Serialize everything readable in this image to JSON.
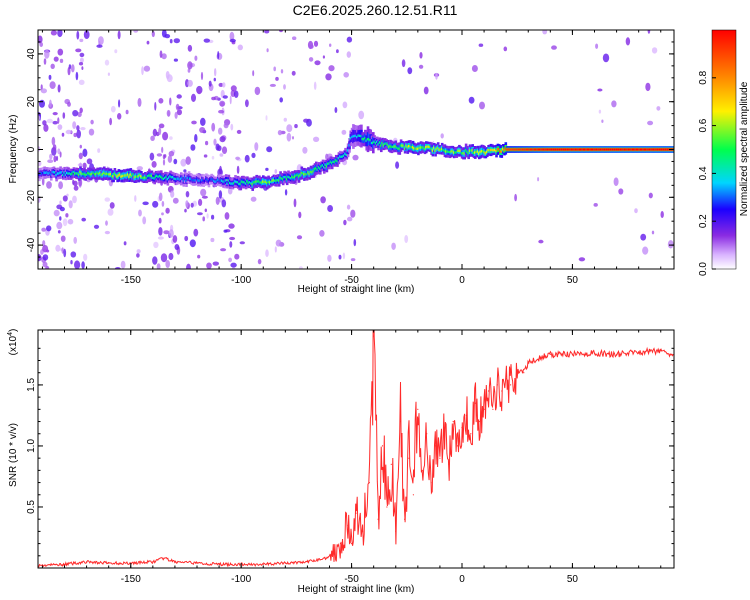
{
  "chart_data": [
    {
      "type": "heatmap",
      "title": "C2E6.2025.260.12.51.R11",
      "xlabel": "Height of straight line (km)",
      "ylabel": "Frequency (Hz)",
      "xlim": [
        -192,
        96
      ],
      "ylim": [
        -50,
        50
      ],
      "xticks": [
        -150,
        -100,
        -50,
        0,
        50
      ],
      "yticks": [
        -40,
        -20,
        0,
        20,
        40
      ],
      "colorbar": {
        "label": "Normalized spectral amplitude",
        "range": [
          0,
          1
        ],
        "ticks": [
          "0.0",
          "0.2",
          "0.4",
          "0.6",
          "0.8"
        ],
        "colors": [
          "#ffffff",
          "#d9b3ff",
          "#8a2be2",
          "#1b00ff",
          "#00d5ff",
          "#00ff4c",
          "#fff000",
          "#ff8a00",
          "#ff0000"
        ]
      },
      "ridge": {
        "x": [
          -192,
          -170,
          -150,
          -130,
          -115,
          -100,
          -90,
          -80,
          -70,
          -60,
          -52,
          -50,
          -45,
          -40,
          -30,
          -20,
          -10,
          0,
          10,
          20,
          40,
          60,
          80,
          96
        ],
        "freq_hz": [
          -10,
          -10,
          -11,
          -12,
          -13,
          -14,
          -14,
          -12,
          -10,
          -6,
          -2,
          6,
          5,
          3,
          1,
          1,
          0,
          -1,
          -1,
          0,
          0,
          0,
          0,
          0
        ],
        "peak_amplitude": [
          0.3,
          0.6,
          0.7,
          0.4,
          0.3,
          0.5,
          0.6,
          0.5,
          0.6,
          0.5,
          0.4,
          0.4,
          0.5,
          0.5,
          0.6,
          0.7,
          0.6,
          0.6,
          0.7,
          0.9,
          1.0,
          1.0,
          1.0,
          1.0
        ]
      },
      "noise_bands": [
        [
          -192,
          -170
        ],
        [
          -140,
          -100
        ]
      ]
    },
    {
      "type": "line",
      "xlabel": "Height of straight line (km)",
      "ylabel": "SNR (10 * v/v)",
      "y_scale_label": "(x10",
      "y_scale_exp": "4",
      "y_scale_close": ")",
      "xlim": [
        -192,
        96
      ],
      "ylim": [
        0,
        1.95
      ],
      "xticks": [
        -150,
        -100,
        -50,
        0,
        50
      ],
      "yticks": [
        0.5,
        1.0,
        1.5
      ],
      "yticklabels": [
        "0.5",
        "1.0",
        "1.5"
      ],
      "color": "#ff2a2a",
      "series": [
        {
          "x": [
            -192,
            -180,
            -170,
            -160,
            -150,
            -140,
            -135,
            -130,
            -120,
            -110,
            -100,
            -90,
            -80,
            -70,
            -62,
            -58,
            -55,
            -52,
            -50,
            -48,
            -45,
            -42,
            -40,
            -38,
            -36,
            -34,
            -32,
            -30,
            -28,
            -26,
            -24,
            -22,
            -20,
            -18,
            -16,
            -14,
            -12,
            -10,
            -8,
            -6,
            -4,
            -2,
            0,
            2,
            4,
            6,
            8,
            10,
            12,
            14,
            16,
            18,
            20,
            22,
            25,
            28,
            30,
            35,
            40,
            50,
            60,
            70,
            80,
            90,
            96
          ],
          "values": [
            0.02,
            0.03,
            0.05,
            0.04,
            0.04,
            0.05,
            0.08,
            0.05,
            0.04,
            0.03,
            0.03,
            0.03,
            0.04,
            0.05,
            0.08,
            0.12,
            0.2,
            0.35,
            0.2,
            0.45,
            0.3,
            0.7,
            1.9,
            0.4,
            1.0,
            0.5,
            0.85,
            0.3,
            1.2,
            0.4,
            0.9,
            0.6,
            1.3,
            0.8,
            1.1,
            0.7,
            1.0,
            0.9,
            1.15,
            0.85,
            1.2,
            1.0,
            1.15,
            1.25,
            1.1,
            1.35,
            1.2,
            1.3,
            1.45,
            1.3,
            1.5,
            1.45,
            1.55,
            1.5,
            1.62,
            1.6,
            1.68,
            1.72,
            1.75,
            1.75,
            1.76,
            1.75,
            1.77,
            1.78,
            1.75
          ]
        }
      ]
    }
  ]
}
